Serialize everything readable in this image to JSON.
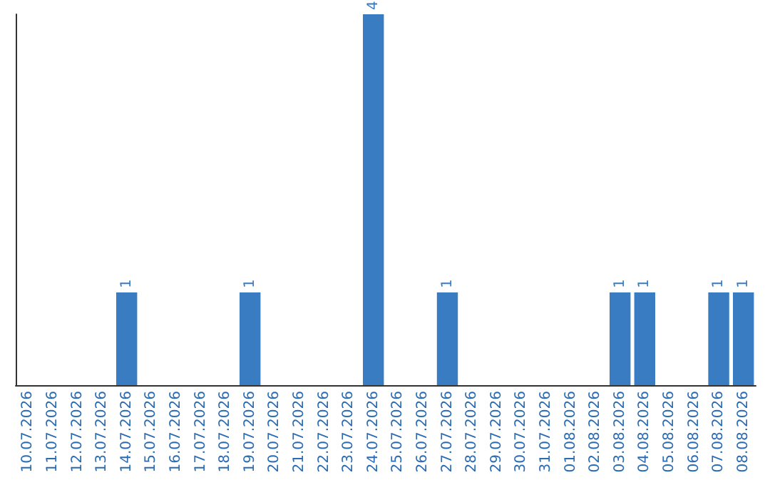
{
  "chart_data": {
    "type": "bar",
    "categories": [
      "10.07.2026",
      "11.07.2026",
      "12.07.2026",
      "13.07.2026",
      "14.07.2026",
      "15.07.2026",
      "16.07.2026",
      "17.07.2026",
      "18.07.2026",
      "19.07.2026",
      "20.07.2026",
      "21.07.2026",
      "22.07.2026",
      "23.07.2026",
      "24.07.2026",
      "25.07.2026",
      "26.07.2026",
      "27.07.2026",
      "28.07.2026",
      "29.07.2026",
      "30.07.2026",
      "31.07.2026",
      "01.08.2026",
      "02.08.2026",
      "03.08.2026",
      "04.08.2026",
      "05.08.2026",
      "06.08.2026",
      "07.08.2026",
      "08.08.2026"
    ],
    "values": [
      0,
      0,
      0,
      0,
      1,
      0,
      0,
      0,
      0,
      1,
      0,
      0,
      0,
      0,
      4,
      0,
      0,
      1,
      0,
      0,
      0,
      0,
      0,
      0,
      1,
      1,
      0,
      0,
      1,
      1
    ],
    "value_labels": [
      null,
      null,
      null,
      null,
      "1",
      null,
      null,
      null,
      null,
      "1",
      null,
      null,
      null,
      null,
      "4",
      null,
      null,
      "1",
      null,
      null,
      null,
      null,
      null,
      null,
      "1",
      "1",
      null,
      null,
      "1",
      "1"
    ],
    "color": "#3a7cc1",
    "tick_labels": "x"
  }
}
